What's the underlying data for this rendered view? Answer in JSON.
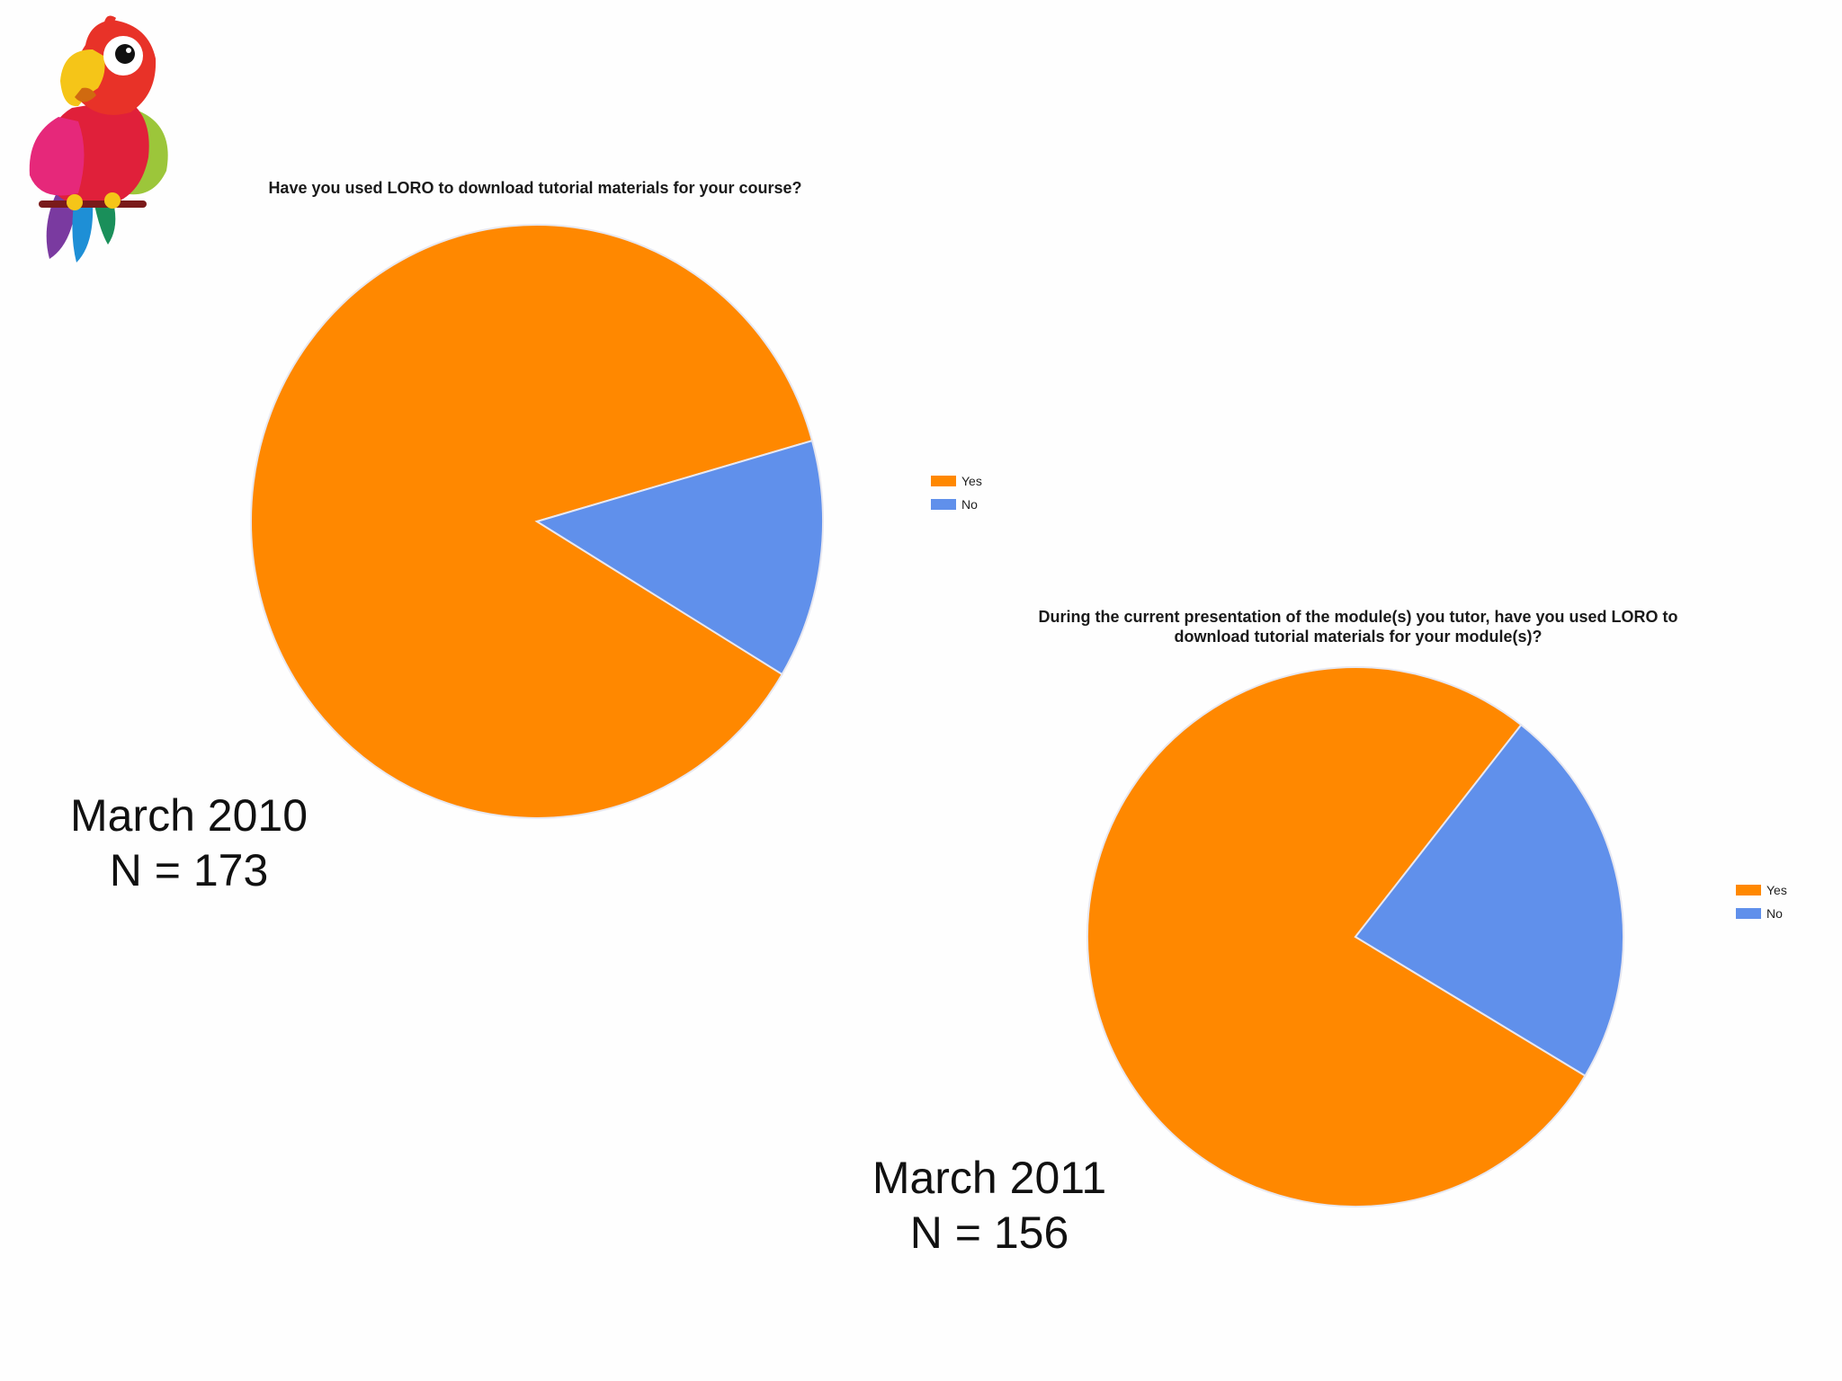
{
  "logo": {
    "icon": "parrot-mascot-icon"
  },
  "chart_data": [
    {
      "type": "pie",
      "title": "Have you used LORO to download tutorial materials for your course?",
      "categories": [
        "Yes",
        "No"
      ],
      "values": [
        87,
        13
      ],
      "value_unit": "percent (estimated from slice angles)",
      "colors": [
        "#ff8800",
        "#6090eb"
      ],
      "legend": {
        "position": "right",
        "entries": [
          "Yes",
          "No"
        ]
      },
      "caption": {
        "line1": "March 2010",
        "line2": "N = 173"
      }
    },
    {
      "type": "pie",
      "title": "During the current presentation of the module(s) you tutor, have you used LORO to download tutorial materials for your module(s)?",
      "categories": [
        "Yes",
        "No"
      ],
      "values": [
        77,
        23
      ],
      "value_unit": "percent (estimated from slice angles)",
      "colors": [
        "#ff8800",
        "#6090eb"
      ],
      "legend": {
        "position": "right",
        "entries": [
          "Yes",
          "No"
        ]
      },
      "caption": {
        "line1": "March 2011",
        "line2": "N = 156"
      }
    }
  ]
}
